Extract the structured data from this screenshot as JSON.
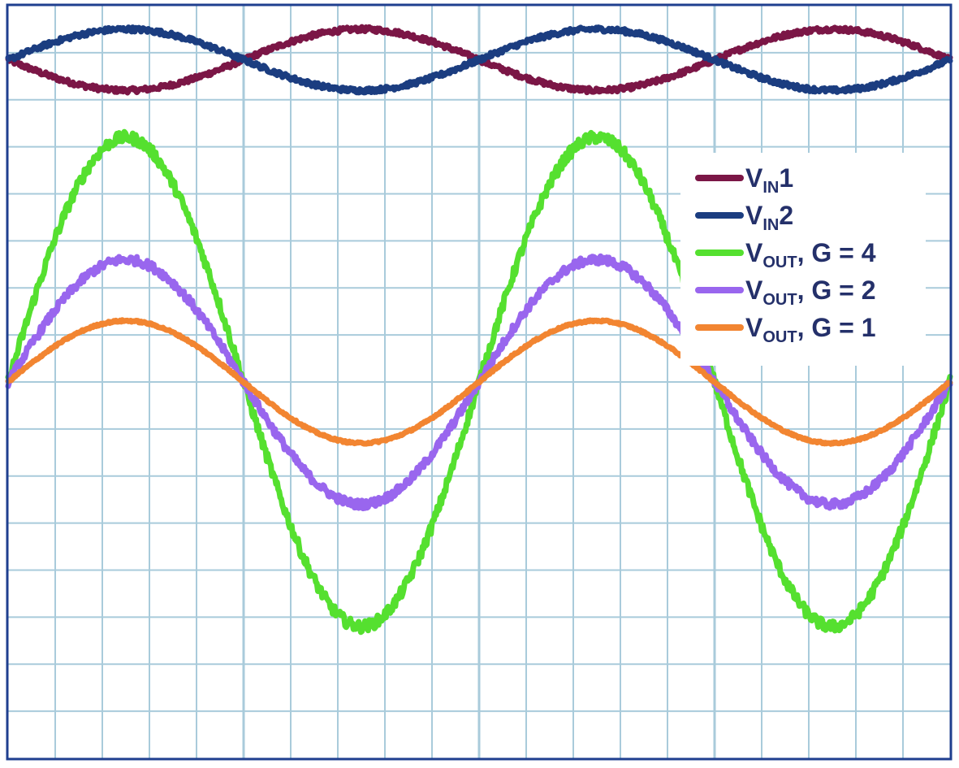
{
  "chart_data": {
    "type": "line",
    "title": "",
    "xlabel": "",
    "ylabel": "",
    "grid": true,
    "grid_divisions": {
      "x": 20,
      "y": 16
    },
    "legend_position": "right",
    "x_range": [
      0,
      20
    ],
    "y_range": [
      -8,
      8
    ],
    "cycles_shown": 2,
    "colors": {
      "background": "#ffffff",
      "frame": "#1f3f8f",
      "grid": "#a9cbdb"
    },
    "series": [
      {
        "key": "vin1",
        "name": "VIN1",
        "name_main": "V",
        "name_sub": "IN",
        "name_tail": "1",
        "color": "#7b1646",
        "offset": 6.85,
        "amplitude": -0.65,
        "noise": 0.05
      },
      {
        "key": "vin2",
        "name": "VIN2",
        "name_main": "V",
        "name_sub": "IN",
        "name_tail": "2",
        "color": "#1b3d80",
        "offset": 6.85,
        "amplitude": 0.65,
        "noise": 0.05
      },
      {
        "key": "vout_g4",
        "name": "VOUT, G = 4",
        "name_main": "V",
        "name_sub": "OUT",
        "name_tail": ", G = 4",
        "color": "#55e02f",
        "offset": 0,
        "amplitude": 5.2,
        "noise": 0.12
      },
      {
        "key": "vout_g2",
        "name": "VOUT, G = 2",
        "name_main": "V",
        "name_sub": "OUT",
        "name_tail": ", G = 2",
        "color": "#9966ee",
        "offset": 0,
        "amplitude": 2.6,
        "noise": 0.09
      },
      {
        "key": "vout_g1",
        "name": "VOUT, G = 1",
        "name_main": "V",
        "name_sub": "OUT",
        "name_tail": ", G = 1",
        "color": "#f28531",
        "offset": 0,
        "amplitude": 1.3,
        "noise": 0.02
      }
    ]
  }
}
